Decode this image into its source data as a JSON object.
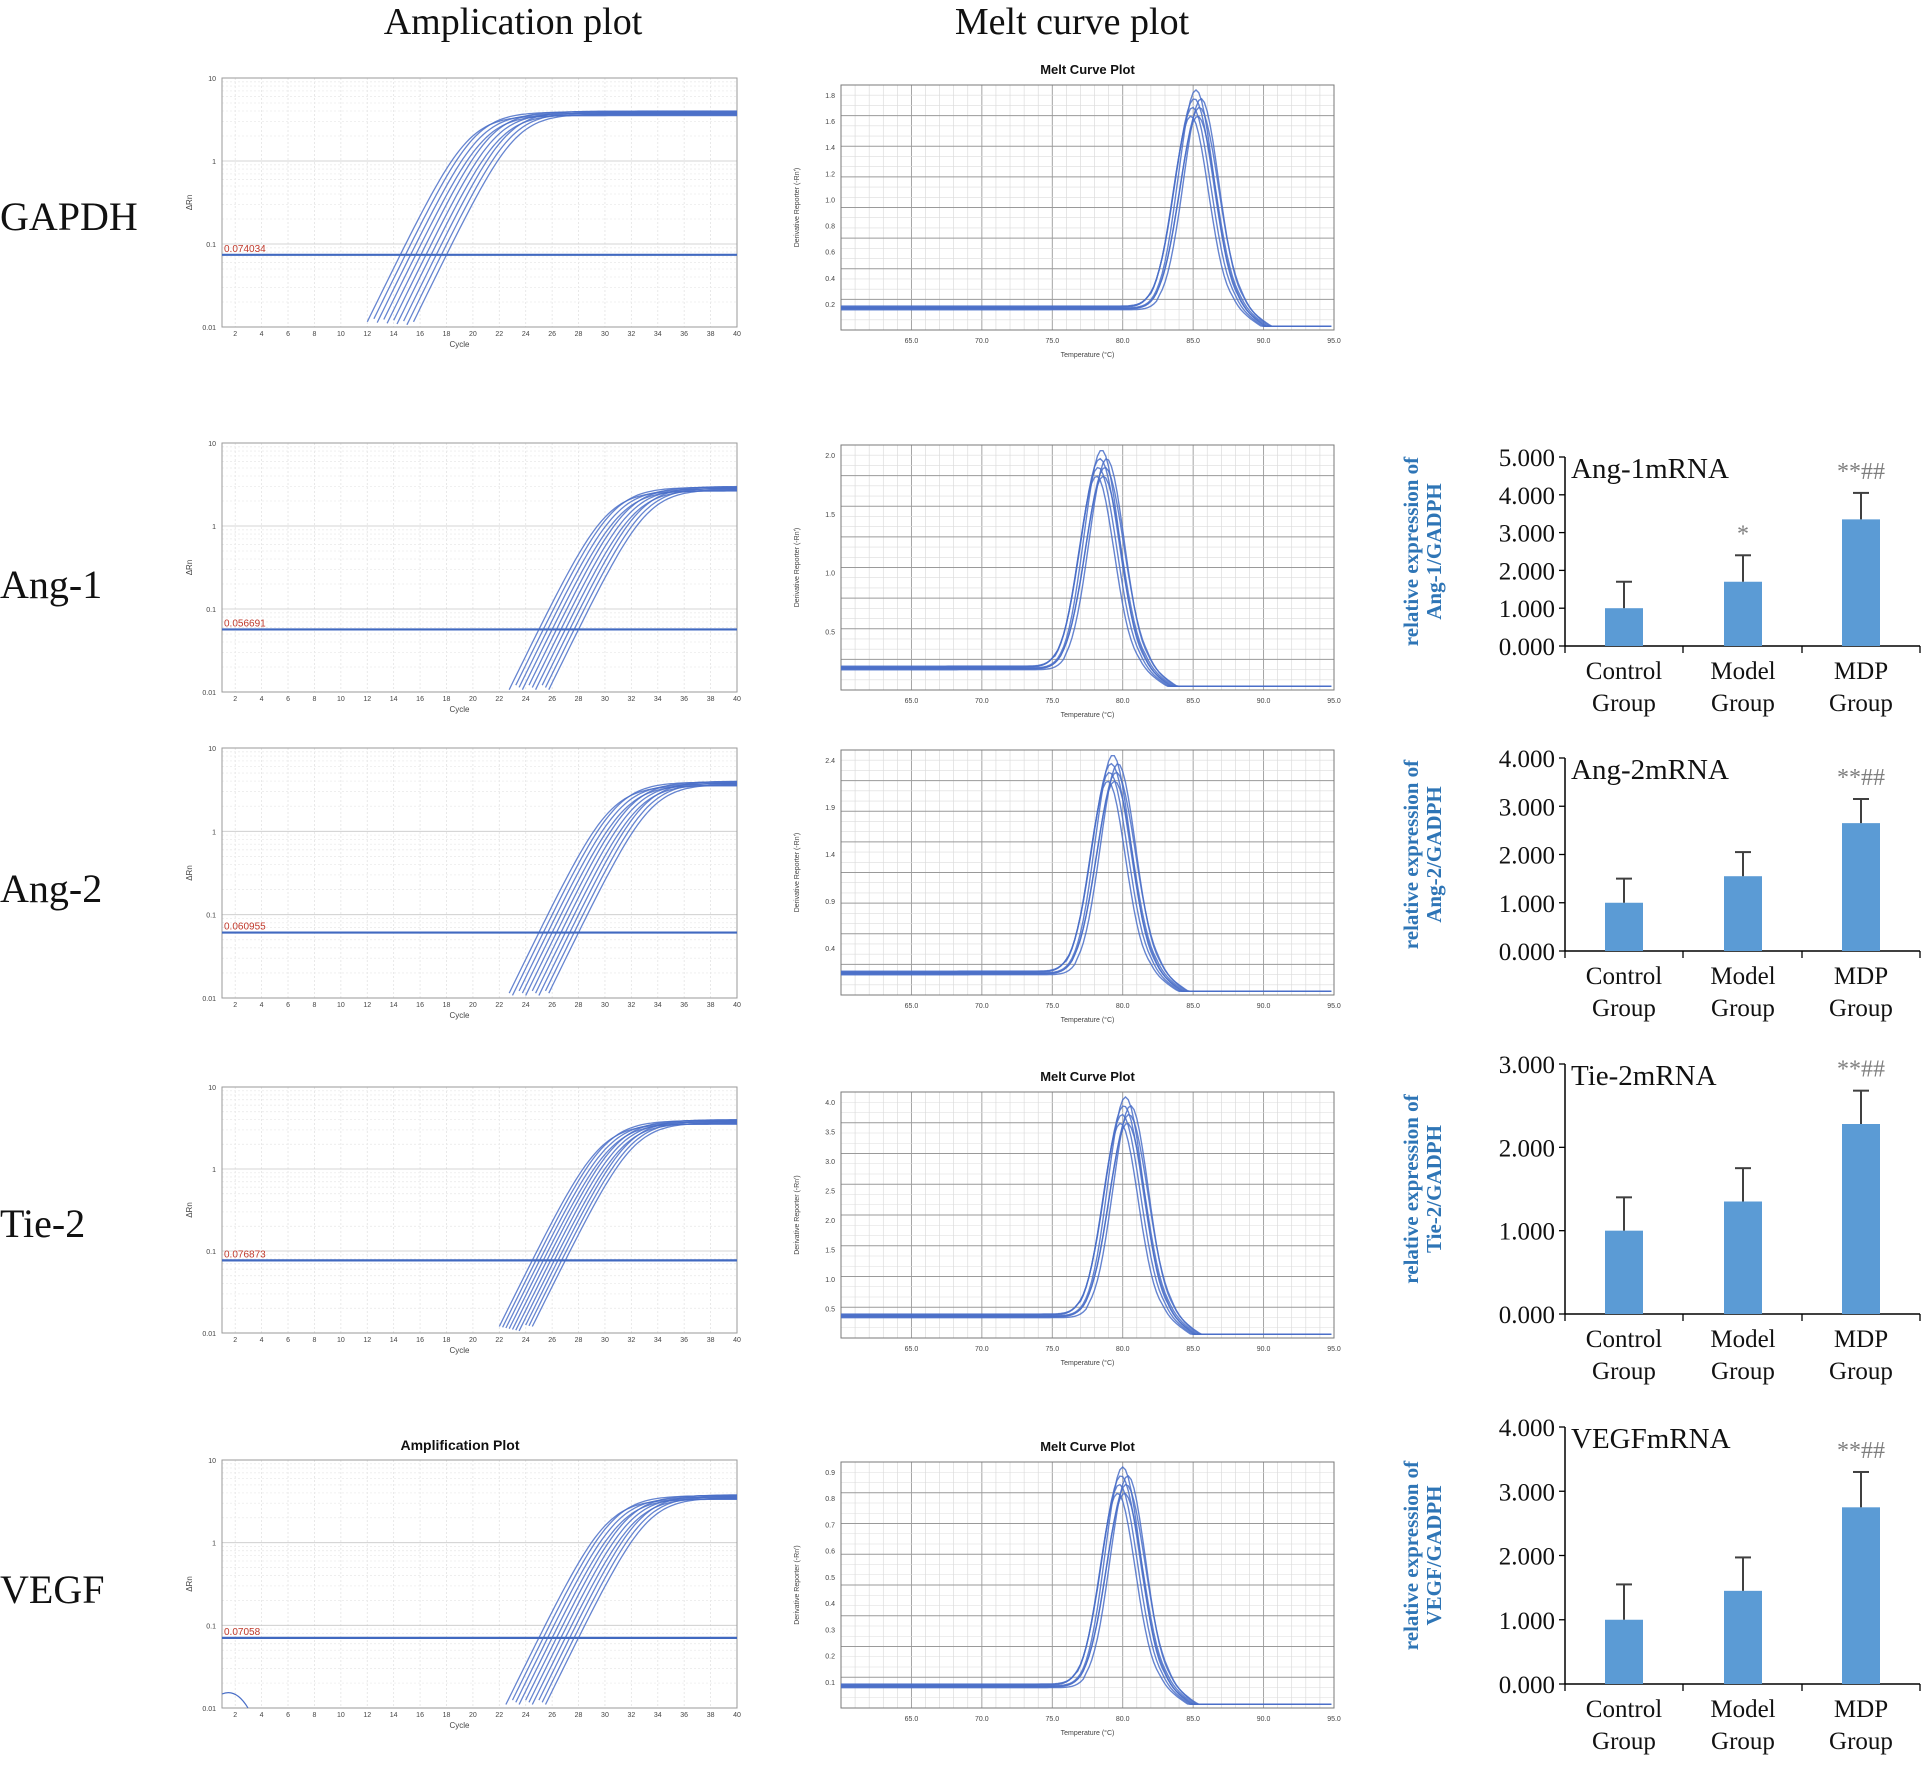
{
  "headers": {
    "amplification": "Amplication plot",
    "melt": "Melt curve plot"
  },
  "colors": {
    "curve": "#4a6fc8",
    "bar": "#5b9bd5",
    "blueText": "#2e75b6",
    "threshold": "#4169c0",
    "grid": "#c8c8c8",
    "marker": "#7f7f7f"
  },
  "rows": [
    {
      "gene": "GAPDH",
      "amp": {
        "title": "",
        "threshold_label": "0.074034",
        "ylabel": "ΔRn",
        "xlabel": "Cycle",
        "yticks": [
          "10",
          "1",
          "0.1",
          "0.01"
        ],
        "xticks": [
          "2",
          "4",
          "6",
          "8",
          "10",
          "12",
          "14",
          "16",
          "18",
          "20",
          "22",
          "24",
          "26",
          "28",
          "30",
          "32",
          "34",
          "36",
          "38",
          "40"
        ],
        "ct_range": [
          14.5,
          18.0
        ],
        "plateau": 4.0
      },
      "melt": {
        "title": "Melt Curve Plot",
        "ylabel": "Derivative Reporter (-Rn')",
        "xlabel": "Temperature (°C)",
        "yticks": [
          "1.8",
          "1.6",
          "1.4",
          "1.2",
          "1.0",
          "0.8",
          "0.6",
          "0.4",
          "0.2"
        ],
        "xticks": [
          "65.0",
          "70.0",
          "75.0",
          "80.0",
          "85.0",
          "90.0",
          "95.0"
        ],
        "peak_temp": 85.2,
        "xrange": [
          60.0,
          95.0
        ]
      }
    },
    {
      "gene": "Ang-1",
      "amp": {
        "title": "",
        "threshold_label": "0.056691",
        "ylabel": "ΔRn",
        "xlabel": "Cycle",
        "yticks": [
          "10",
          "1",
          "0.1",
          "0.01"
        ],
        "xticks": [
          "2",
          "4",
          "6",
          "8",
          "10",
          "12",
          "14",
          "16",
          "18",
          "20",
          "22",
          "24",
          "26",
          "28",
          "30",
          "32",
          "34",
          "36",
          "38",
          "40"
        ],
        "ct_range": [
          25.0,
          28.0
        ],
        "plateau": 3.0
      },
      "melt": {
        "title": "",
        "ylabel": "Derivative Reporter (-Rn')",
        "xlabel": "Temperature (°C)",
        "yticks": [
          "2.0",
          "1.5",
          "1.0",
          "0.5"
        ],
        "xticks": [
          "65.0",
          "70.0",
          "75.0",
          "80.0",
          "85.0",
          "90.0",
          "95.0"
        ],
        "peak_temp": 78.5,
        "xrange": [
          60.0,
          95.0
        ]
      }
    },
    {
      "gene": "Ang-2",
      "amp": {
        "title": "",
        "threshold_label": "0.060955",
        "ylabel": "ΔRn",
        "xlabel": "Cycle",
        "yticks": [
          "10",
          "1",
          "0.1",
          "0.01"
        ],
        "xticks": [
          "2",
          "4",
          "6",
          "8",
          "10",
          "12",
          "14",
          "16",
          "18",
          "20",
          "22",
          "24",
          "26",
          "28",
          "30",
          "32",
          "34",
          "36",
          "38",
          "40"
        ],
        "ct_range": [
          25.0,
          28.0
        ],
        "plateau": 4.0
      },
      "melt": {
        "title": "",
        "ylabel": "Derivative Reporter (-Rn')",
        "xlabel": "Temperature (°C)",
        "yticks": [
          "2.4",
          "1.9",
          "1.4",
          "0.9",
          "0.4"
        ],
        "xticks": [
          "65.0",
          "70.0",
          "75.0",
          "80.0",
          "85.0",
          "90.0",
          "95.0"
        ],
        "peak_temp": 79.3,
        "xrange": [
          60.0,
          95.0
        ]
      }
    },
    {
      "gene": "Tie-2",
      "amp": {
        "title": "",
        "threshold_label": "0.076873",
        "ylabel": "ΔRn",
        "xlabel": "Cycle",
        "yticks": [
          "10",
          "1",
          "0.1",
          "0.01"
        ],
        "xticks": [
          "2",
          "4",
          "6",
          "8",
          "10",
          "12",
          "14",
          "16",
          "18",
          "20",
          "22",
          "24",
          "26",
          "28",
          "30",
          "32",
          "34",
          "36",
          "38",
          "40"
        ],
        "ct_range": [
          24.5,
          27.0
        ],
        "plateau": 4.0
      },
      "melt": {
        "title": "Melt Curve Plot",
        "ylabel": "Derivative Reporter (-Rn')",
        "xlabel": "Temperature (°C)",
        "yticks": [
          "4.0",
          "3.5",
          "3.0",
          "2.5",
          "2.0",
          "1.5",
          "1.0",
          "0.5"
        ],
        "xticks": [
          "65.0",
          "70.0",
          "75.0",
          "80.0",
          "85.0",
          "90.0",
          "95.0"
        ],
        "peak_temp": 80.2,
        "xrange": [
          60.0,
          95.0
        ]
      }
    },
    {
      "gene": "VEGF",
      "amp": {
        "title": "Amplification Plot",
        "threshold_label": "0.07058",
        "ylabel": "ΔRn",
        "xlabel": "Cycle",
        "yticks": [
          "10",
          "1",
          "0.1",
          "0.01"
        ],
        "xticks": [
          "2",
          "4",
          "6",
          "8",
          "10",
          "12",
          "14",
          "16",
          "18",
          "20",
          "22",
          "24",
          "26",
          "28",
          "30",
          "32",
          "34",
          "36",
          "38",
          "40"
        ],
        "ct_range": [
          25.0,
          28.0
        ],
        "plateau": 3.8
      },
      "melt": {
        "title": "Melt Curve Plot",
        "ylabel": "Derivative Reporter (-Rn')",
        "xlabel": "Temperature (°C)",
        "yticks": [
          "0.9",
          "0.8",
          "0.7",
          "0.6",
          "0.5",
          "0.4",
          "0.3",
          "0.2",
          "0.1"
        ],
        "xticks": [
          "65.0",
          "70.0",
          "75.0",
          "80.0",
          "85.0",
          "90.0",
          "95.0"
        ],
        "peak_temp": 80.0,
        "xrange": [
          60.0,
          95.0
        ]
      }
    }
  ],
  "chart_data": [
    {
      "type": "bar",
      "title": "Ang-1mRNA",
      "ylabel": "relative expression of Ang-1/GADPH",
      "categories": [
        "Control Group",
        "Model Group",
        "MDP Group"
      ],
      "values": [
        1.0,
        1.7,
        3.35
      ],
      "errors": [
        0.7,
        0.7,
        0.7
      ],
      "annotations": [
        "",
        "*",
        "**##"
      ],
      "yticks": [
        "0.000",
        "1.000",
        "2.000",
        "3.000",
        "4.000",
        "5.000"
      ],
      "ylim": [
        0,
        5
      ]
    },
    {
      "type": "bar",
      "title": "Ang-2mRNA",
      "ylabel": "relative expression of Ang-2/GADPH",
      "categories": [
        "Control Group",
        "Model Group",
        "MDP Group"
      ],
      "values": [
        1.0,
        1.55,
        2.65
      ],
      "errors": [
        0.5,
        0.5,
        0.5
      ],
      "annotations": [
        "",
        "",
        "**##"
      ],
      "yticks": [
        "0.000",
        "1.000",
        "2.000",
        "3.000",
        "4.000"
      ],
      "ylim": [
        0,
        4
      ]
    },
    {
      "type": "bar",
      "title": "Tie-2mRNA",
      "ylabel": "relative expression of Tie-2/GADPH",
      "categories": [
        "Control Group",
        "Model Group",
        "MDP Group"
      ],
      "values": [
        1.0,
        1.35,
        2.28
      ],
      "errors": [
        0.4,
        0.4,
        0.4
      ],
      "annotations": [
        "",
        "",
        "**##"
      ],
      "yticks": [
        "0.000",
        "1.000",
        "2.000",
        "3.000"
      ],
      "ylim": [
        0,
        3
      ]
    },
    {
      "type": "bar",
      "title": "VEGFmRNA",
      "ylabel": "relative expression of VEGF/GADPH",
      "categories": [
        "Control Group",
        "Model Group",
        "MDP Group"
      ],
      "values": [
        1.0,
        1.45,
        2.75
      ],
      "errors": [
        0.55,
        0.52,
        0.55
      ],
      "annotations": [
        "",
        "",
        "**##"
      ],
      "yticks": [
        "0.000",
        "1.000",
        "2.000",
        "3.000",
        "4.000"
      ],
      "ylim": [
        0,
        4
      ]
    }
  ]
}
